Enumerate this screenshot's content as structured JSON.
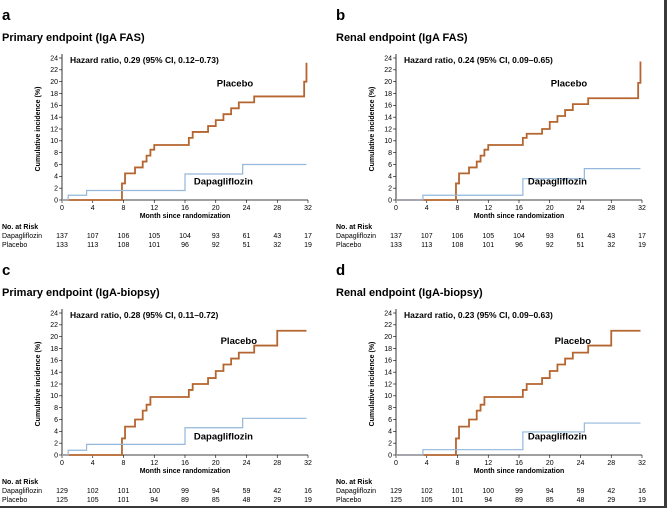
{
  "colors": {
    "placebo": "#b5652f",
    "dapagliflozin": "#93b8dc",
    "axis": "#000000"
  },
  "risk_table_heading": "No. at Risk",
  "chart_data": [
    {
      "type": "line",
      "panel_letter": "a",
      "title": "Primary endpoint (IgA FAS)",
      "subtitle": "Hazard ratio, 0.29 (95% CI, 0.12–0.73)",
      "xlabel": "Month since randomization",
      "ylabel": "Cumulative incidence (%)",
      "xlim": [
        0,
        32
      ],
      "ylim": [
        0,
        24
      ],
      "xticks": [
        0,
        4,
        8,
        12,
        16,
        20,
        24,
        28,
        32
      ],
      "yticks": [
        0,
        2,
        4,
        6,
        8,
        10,
        12,
        14,
        16,
        18,
        20,
        22,
        24
      ],
      "grid": false,
      "series": [
        {
          "name": "Placebo",
          "key": "placebo",
          "x": [
            0,
            7.8,
            8.2,
            9,
            9.5,
            10.5,
            11,
            11.5,
            12,
            13,
            14,
            15,
            16,
            16.5,
            17,
            18,
            19,
            20,
            21,
            22,
            23,
            24,
            25,
            28,
            31.5,
            31.8
          ],
          "y": [
            0,
            2.8,
            4.5,
            4.5,
            5.5,
            6.5,
            7.5,
            8.5,
            9.3,
            9.3,
            9.3,
            9.3,
            9.3,
            10.5,
            11.5,
            11.5,
            12.5,
            13.5,
            14.5,
            15.5,
            16.5,
            16.5,
            17.5,
            17.5,
            20,
            23.2
          ],
          "label_pos": [
            22.5,
            19.2
          ]
        },
        {
          "name": "Dapagliflozin",
          "key": "dapagliflozin",
          "x": [
            0,
            0.8,
            3.2,
            8.2,
            15.5,
            16,
            23,
            23.5,
            31.8
          ],
          "y": [
            0,
            0.8,
            1.6,
            1.6,
            1.6,
            4.4,
            4.4,
            6,
            6
          ],
          "label_pos": [
            21,
            2.6
          ]
        }
      ],
      "risk_table": {
        "x": [
          0,
          4,
          8,
          12,
          16,
          20,
          24,
          28,
          32
        ],
        "rows": [
          {
            "label": "Dapagliflozin",
            "values": [
              "137",
              "107",
              "106",
              "105",
              "104",
              "93",
              "61",
              "43",
              "17"
            ]
          },
          {
            "label": "Placebo",
            "values": [
              "133",
              "113",
              "108",
              "101",
              "96",
              "92",
              "51",
              "32",
              "19"
            ]
          }
        ]
      }
    },
    {
      "type": "line",
      "panel_letter": "b",
      "title": "Renal endpoint (IgA FAS)",
      "subtitle": "Hazard ratio, 0.24 (95% CI, 0.09–0.65)",
      "xlabel": "Month since randomization",
      "ylabel": "Cumulative incidence (%)",
      "xlim": [
        0,
        32
      ],
      "ylim": [
        0,
        24
      ],
      "xticks": [
        0,
        4,
        8,
        12,
        16,
        20,
        24,
        28,
        32
      ],
      "yticks": [
        0,
        2,
        4,
        6,
        8,
        10,
        12,
        14,
        16,
        18,
        20,
        22,
        24
      ],
      "grid": false,
      "series": [
        {
          "name": "Placebo",
          "key": "placebo",
          "x": [
            0,
            7.8,
            8.2,
            9,
            9.5,
            10.5,
            11,
            11.5,
            12,
            13,
            14,
            15,
            16,
            16.5,
            17,
            18,
            19,
            20,
            21,
            22,
            23,
            24,
            25,
            28,
            31.5,
            31.8
          ],
          "y": [
            0,
            2.8,
            4.5,
            4.5,
            5.5,
            6.5,
            7.5,
            8.5,
            9.3,
            9.3,
            9.3,
            9.3,
            9.3,
            10.5,
            11.2,
            11.2,
            12,
            13.2,
            14.2,
            15.2,
            16.2,
            16.2,
            17.2,
            17.2,
            19.8,
            23.4
          ],
          "label_pos": [
            22.5,
            19.2
          ]
        },
        {
          "name": "Dapagliflozin",
          "key": "dapagliflozin",
          "x": [
            0,
            3.5,
            8.2,
            15.5,
            16.5,
            24,
            24.5,
            31.8
          ],
          "y": [
            0,
            0.8,
            0.8,
            0.8,
            3.6,
            3.6,
            5.3,
            5.3
          ],
          "label_pos": [
            21,
            2.6
          ]
        }
      ],
      "risk_table": {
        "x": [
          0,
          4,
          8,
          12,
          16,
          20,
          24,
          28,
          32
        ],
        "rows": [
          {
            "label": "Dapagliflozin",
            "values": [
              "137",
              "107",
              "106",
              "105",
              "104",
              "93",
              "61",
              "43",
              "17"
            ]
          },
          {
            "label": "Placebo",
            "values": [
              "133",
              "113",
              "108",
              "101",
              "96",
              "92",
              "51",
              "32",
              "19"
            ]
          }
        ]
      }
    },
    {
      "type": "line",
      "panel_letter": "c",
      "title": "Primary endpoint (IgA-biopsy)",
      "subtitle": "Hazard ratio, 0.28 (95% CI, 0.11–0.72)",
      "xlabel": "Month since randomization",
      "ylabel": "Cumulative incidence (%)",
      "xlim": [
        0,
        32
      ],
      "ylim": [
        0,
        24
      ],
      "xticks": [
        0,
        4,
        8,
        12,
        16,
        20,
        24,
        28,
        32
      ],
      "yticks": [
        0,
        2,
        4,
        6,
        8,
        10,
        12,
        14,
        16,
        18,
        20,
        22,
        24
      ],
      "grid": false,
      "series": [
        {
          "name": "Placebo",
          "key": "placebo",
          "x": [
            0,
            7.8,
            8.2,
            9,
            9.5,
            10.5,
            11,
            11.5,
            12,
            13,
            14,
            15,
            16,
            16.5,
            17,
            18,
            19,
            20,
            21,
            22,
            23,
            24,
            25,
            28,
            31.8
          ],
          "y": [
            0,
            2.8,
            4.8,
            4.8,
            6,
            7.5,
            8.5,
            9.8,
            9.8,
            9.8,
            9.8,
            9.8,
            9.8,
            11,
            12,
            12,
            13,
            14.2,
            15.3,
            16.3,
            17.3,
            17.3,
            18.5,
            21,
            21
          ],
          "label_pos": [
            23,
            18.8
          ]
        },
        {
          "name": "Dapagliflozin",
          "key": "dapagliflozin",
          "x": [
            0,
            0.8,
            3.2,
            8.2,
            15.5,
            16,
            23,
            23.5,
            31.8
          ],
          "y": [
            0,
            0.8,
            1.8,
            1.8,
            1.8,
            4.6,
            4.6,
            6.2,
            6.2
          ],
          "label_pos": [
            21,
            2.6
          ]
        }
      ],
      "risk_table": {
        "x": [
          0,
          4,
          8,
          12,
          16,
          20,
          24,
          28,
          32
        ],
        "rows": [
          {
            "label": "Dapagliflozin",
            "values": [
              "129",
              "102",
              "101",
              "100",
              "99",
              "94",
              "59",
              "42",
              "16"
            ]
          },
          {
            "label": "Placebo",
            "values": [
              "125",
              "105",
              "101",
              "94",
              "89",
              "85",
              "48",
              "29",
              "19"
            ]
          }
        ]
      }
    },
    {
      "type": "line",
      "panel_letter": "d",
      "title": "Renal endpoint (IgA-biopsy)",
      "subtitle": "Hazard ratio, 0.23 (95% CI, 0.09–0.63)",
      "xlabel": "Month since randomization",
      "ylabel": "Cumulative incidence (%)",
      "xlim": [
        0,
        32
      ],
      "ylim": [
        0,
        24
      ],
      "xticks": [
        0,
        4,
        8,
        12,
        16,
        20,
        24,
        28,
        32
      ],
      "yticks": [
        0,
        2,
        4,
        6,
        8,
        10,
        12,
        14,
        16,
        18,
        20,
        22,
        24
      ],
      "grid": false,
      "series": [
        {
          "name": "Placebo",
          "key": "placebo",
          "x": [
            0,
            7.8,
            8.2,
            9,
            9.5,
            10.5,
            11,
            11.5,
            12,
            13,
            14,
            15,
            16,
            16.5,
            17,
            18,
            19,
            20,
            21,
            22,
            23,
            24,
            25,
            28,
            31.8
          ],
          "y": [
            0,
            2.8,
            4.8,
            4.8,
            6,
            7.5,
            8.5,
            9.8,
            9.8,
            9.8,
            9.8,
            9.8,
            9.8,
            11,
            12,
            12,
            13,
            14.2,
            15.3,
            16.3,
            17.3,
            17.3,
            18.5,
            21,
            21
          ],
          "label_pos": [
            23,
            18.8
          ]
        },
        {
          "name": "Dapagliflozin",
          "key": "dapagliflozin",
          "x": [
            0,
            3.5,
            8.2,
            15.5,
            16.5,
            24,
            24.5,
            31.8
          ],
          "y": [
            0,
            0.9,
            0.9,
            0.9,
            3.9,
            3.9,
            5.4,
            5.4
          ],
          "label_pos": [
            21,
            2.6
          ]
        }
      ],
      "risk_table": {
        "x": [
          0,
          4,
          8,
          12,
          16,
          20,
          24,
          28,
          32
        ],
        "rows": [
          {
            "label": "Dapagliflozin",
            "values": [
              "129",
              "102",
              "101",
              "100",
              "99",
              "94",
              "59",
              "42",
              "16"
            ]
          },
          {
            "label": "Placebo",
            "values": [
              "125",
              "105",
              "101",
              "94",
              "89",
              "85",
              "48",
              "29",
              "19"
            ]
          }
        ]
      }
    }
  ]
}
